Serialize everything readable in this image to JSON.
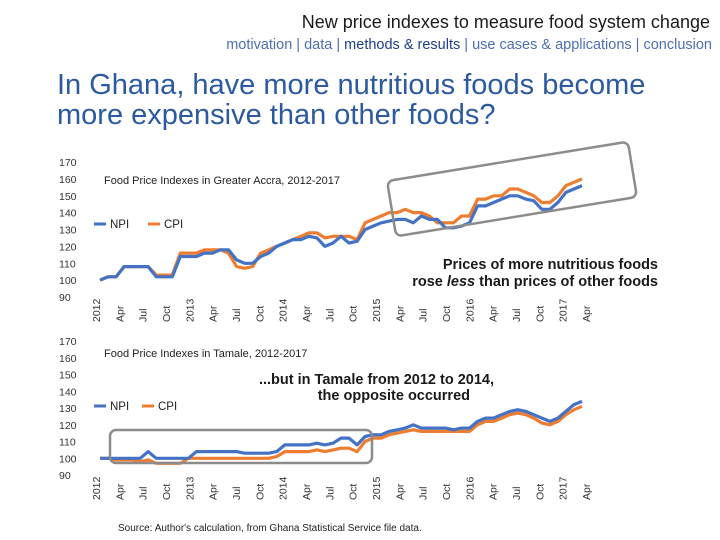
{
  "header": {
    "title": "New price indexes to measure food system change",
    "nav": [
      {
        "label": "motivation",
        "current": false
      },
      {
        "label": "data",
        "current": false
      },
      {
        "label": "methods & results",
        "current": true
      },
      {
        "label": "use cases & applications",
        "current": false
      },
      {
        "label": "conclusion",
        "current": false
      }
    ],
    "separator": " | "
  },
  "question": "In Ghana, have more nutritious foods become more expensive than other foods?",
  "source": "Source: Author's calculation, from Ghana Statistical Service file data.",
  "colors": {
    "npi": "#4472c4",
    "cpi": "#ed7d31",
    "highlight": "#8c8c8c"
  },
  "chart_data": [
    {
      "type": "line",
      "title": "Food Price Indexes in Greater Accra, 2012-2017",
      "yticks": [
        170,
        160,
        150,
        140,
        130,
        120,
        110,
        100,
        90
      ],
      "ylim": [
        90,
        170
      ],
      "xticks": [
        "2012",
        "Apr",
        "Jul",
        "Oct",
        "2013",
        "Apr",
        "Jul",
        "Oct",
        "2014",
        "Apr",
        "Jul",
        "Oct",
        "2015",
        "Apr",
        "Jul",
        "Oct",
        "2016",
        "Apr",
        "Jul",
        "Oct",
        "2017",
        "Apr"
      ],
      "legend": [
        "NPI",
        "CPI"
      ],
      "annotation": [
        "Prices of more nutritious foods",
        "rose ",
        "less",
        " than prices of other foods"
      ],
      "series": [
        {
          "name": "NPI",
          "values": [
            100,
            102,
            102,
            108,
            108,
            108,
            108,
            102,
            102,
            102,
            114,
            114,
            114,
            116,
            116,
            118,
            118,
            112,
            110,
            110,
            114,
            116,
            120,
            122,
            124,
            124,
            126,
            125,
            120,
            122,
            126,
            122,
            123,
            130,
            132,
            134,
            135,
            136,
            136,
            134,
            138,
            136,
            136,
            131,
            131,
            132,
            134,
            144,
            144,
            146,
            148,
            150,
            150,
            148,
            147,
            142,
            142,
            146,
            152,
            154,
            156
          ]
        },
        {
          "name": "CPI",
          "values": [
            100,
            102,
            102,
            108,
            108,
            108,
            108,
            103,
            103,
            103,
            116,
            116,
            116,
            118,
            118,
            118,
            116,
            108,
            107,
            108,
            116,
            118,
            120,
            122,
            124,
            126,
            128,
            128,
            125,
            126,
            126,
            126,
            124,
            134,
            136,
            138,
            140,
            140,
            142,
            140,
            140,
            138,
            134,
            134,
            134,
            138,
            138,
            148,
            148,
            150,
            150,
            154,
            154,
            152,
            150,
            146,
            146,
            150,
            156,
            158,
            160
          ]
        }
      ]
    },
    {
      "type": "line",
      "title": "Food Price Indexes in Tamale, 2012-2017",
      "yticks": [
        170,
        160,
        150,
        140,
        130,
        120,
        110,
        100,
        90
      ],
      "ylim": [
        90,
        170
      ],
      "xticks": [
        "2012",
        "Apr",
        "Jul",
        "Oct",
        "2013",
        "Apr",
        "Jul",
        "Oct",
        "2014",
        "Apr",
        "Jul",
        "Oct",
        "2015",
        "Apr",
        "Jul",
        "Oct",
        "2016",
        "Apr",
        "Jul",
        "Oct",
        "2017",
        "Apr"
      ],
      "legend": [
        "NPI",
        "CPI"
      ],
      "annotation": [
        "...but in Tamale from 2012 to 2014,",
        "the opposite occurred"
      ],
      "series": [
        {
          "name": "NPI",
          "values": [
            100,
            100,
            100,
            100,
            100,
            100,
            104,
            100,
            100,
            100,
            100,
            100,
            104,
            104,
            104,
            104,
            104,
            104,
            103,
            103,
            103,
            103,
            104,
            108,
            108,
            108,
            108,
            109,
            108,
            109,
            112,
            112,
            108,
            113,
            114,
            114,
            116,
            117,
            118,
            120,
            118,
            118,
            118,
            118,
            117,
            118,
            118,
            122,
            124,
            124,
            126,
            128,
            129,
            128,
            126,
            124,
            122,
            124,
            128,
            132,
            134
          ]
        },
        {
          "name": "CPI",
          "values": [
            100,
            100,
            99,
            99,
            99,
            98,
            99,
            97,
            97,
            97,
            97,
            100,
            100,
            100,
            100,
            100,
            100,
            100,
            100,
            100,
            100,
            100,
            101,
            104,
            104,
            104,
            104,
            105,
            104,
            105,
            106,
            106,
            104,
            110,
            112,
            112,
            114,
            115,
            116,
            117,
            116,
            116,
            116,
            116,
            116,
            116,
            116,
            120,
            122,
            122,
            124,
            126,
            127,
            126,
            124,
            121,
            120,
            122,
            126,
            129,
            131
          ]
        }
      ]
    }
  ]
}
